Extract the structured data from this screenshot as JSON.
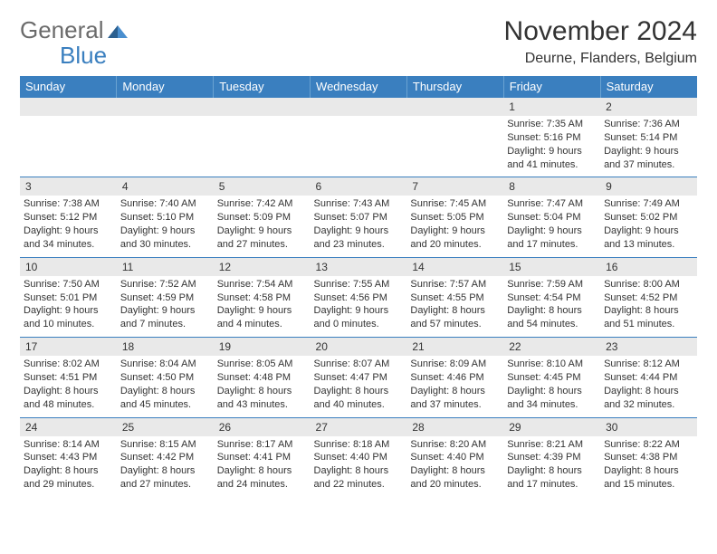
{
  "logo": {
    "general": "General",
    "blue": "Blue"
  },
  "title": "November 2024",
  "location": "Deurne, Flanders, Belgium",
  "colors": {
    "header_bg": "#3a7fbf",
    "header_text": "#ffffff",
    "daynum_bg": "#e9e9e9",
    "text": "#333333",
    "logo_grey": "#6b6b6b",
    "logo_blue": "#3a7fbf",
    "row_divider": "#3a7fbf"
  },
  "typography": {
    "title_fontsize": 30,
    "location_fontsize": 16,
    "weekday_fontsize": 13,
    "daynum_fontsize": 12,
    "body_fontsize": 11,
    "logo_fontsize": 26
  },
  "weekdays": [
    "Sunday",
    "Monday",
    "Tuesday",
    "Wednesday",
    "Thursday",
    "Friday",
    "Saturday"
  ],
  "weeks": [
    [
      null,
      null,
      null,
      null,
      null,
      {
        "n": "1",
        "sr": "Sunrise: 7:35 AM",
        "ss": "Sunset: 5:16 PM",
        "dl1": "Daylight: 9 hours",
        "dl2": "and 41 minutes."
      },
      {
        "n": "2",
        "sr": "Sunrise: 7:36 AM",
        "ss": "Sunset: 5:14 PM",
        "dl1": "Daylight: 9 hours",
        "dl2": "and 37 minutes."
      }
    ],
    [
      {
        "n": "3",
        "sr": "Sunrise: 7:38 AM",
        "ss": "Sunset: 5:12 PM",
        "dl1": "Daylight: 9 hours",
        "dl2": "and 34 minutes."
      },
      {
        "n": "4",
        "sr": "Sunrise: 7:40 AM",
        "ss": "Sunset: 5:10 PM",
        "dl1": "Daylight: 9 hours",
        "dl2": "and 30 minutes."
      },
      {
        "n": "5",
        "sr": "Sunrise: 7:42 AM",
        "ss": "Sunset: 5:09 PM",
        "dl1": "Daylight: 9 hours",
        "dl2": "and 27 minutes."
      },
      {
        "n": "6",
        "sr": "Sunrise: 7:43 AM",
        "ss": "Sunset: 5:07 PM",
        "dl1": "Daylight: 9 hours",
        "dl2": "and 23 minutes."
      },
      {
        "n": "7",
        "sr": "Sunrise: 7:45 AM",
        "ss": "Sunset: 5:05 PM",
        "dl1": "Daylight: 9 hours",
        "dl2": "and 20 minutes."
      },
      {
        "n": "8",
        "sr": "Sunrise: 7:47 AM",
        "ss": "Sunset: 5:04 PM",
        "dl1": "Daylight: 9 hours",
        "dl2": "and 17 minutes."
      },
      {
        "n": "9",
        "sr": "Sunrise: 7:49 AM",
        "ss": "Sunset: 5:02 PM",
        "dl1": "Daylight: 9 hours",
        "dl2": "and 13 minutes."
      }
    ],
    [
      {
        "n": "10",
        "sr": "Sunrise: 7:50 AM",
        "ss": "Sunset: 5:01 PM",
        "dl1": "Daylight: 9 hours",
        "dl2": "and 10 minutes."
      },
      {
        "n": "11",
        "sr": "Sunrise: 7:52 AM",
        "ss": "Sunset: 4:59 PM",
        "dl1": "Daylight: 9 hours",
        "dl2": "and 7 minutes."
      },
      {
        "n": "12",
        "sr": "Sunrise: 7:54 AM",
        "ss": "Sunset: 4:58 PM",
        "dl1": "Daylight: 9 hours",
        "dl2": "and 4 minutes."
      },
      {
        "n": "13",
        "sr": "Sunrise: 7:55 AM",
        "ss": "Sunset: 4:56 PM",
        "dl1": "Daylight: 9 hours",
        "dl2": "and 0 minutes."
      },
      {
        "n": "14",
        "sr": "Sunrise: 7:57 AM",
        "ss": "Sunset: 4:55 PM",
        "dl1": "Daylight: 8 hours",
        "dl2": "and 57 minutes."
      },
      {
        "n": "15",
        "sr": "Sunrise: 7:59 AM",
        "ss": "Sunset: 4:54 PM",
        "dl1": "Daylight: 8 hours",
        "dl2": "and 54 minutes."
      },
      {
        "n": "16",
        "sr": "Sunrise: 8:00 AM",
        "ss": "Sunset: 4:52 PM",
        "dl1": "Daylight: 8 hours",
        "dl2": "and 51 minutes."
      }
    ],
    [
      {
        "n": "17",
        "sr": "Sunrise: 8:02 AM",
        "ss": "Sunset: 4:51 PM",
        "dl1": "Daylight: 8 hours",
        "dl2": "and 48 minutes."
      },
      {
        "n": "18",
        "sr": "Sunrise: 8:04 AM",
        "ss": "Sunset: 4:50 PM",
        "dl1": "Daylight: 8 hours",
        "dl2": "and 45 minutes."
      },
      {
        "n": "19",
        "sr": "Sunrise: 8:05 AM",
        "ss": "Sunset: 4:48 PM",
        "dl1": "Daylight: 8 hours",
        "dl2": "and 43 minutes."
      },
      {
        "n": "20",
        "sr": "Sunrise: 8:07 AM",
        "ss": "Sunset: 4:47 PM",
        "dl1": "Daylight: 8 hours",
        "dl2": "and 40 minutes."
      },
      {
        "n": "21",
        "sr": "Sunrise: 8:09 AM",
        "ss": "Sunset: 4:46 PM",
        "dl1": "Daylight: 8 hours",
        "dl2": "and 37 minutes."
      },
      {
        "n": "22",
        "sr": "Sunrise: 8:10 AM",
        "ss": "Sunset: 4:45 PM",
        "dl1": "Daylight: 8 hours",
        "dl2": "and 34 minutes."
      },
      {
        "n": "23",
        "sr": "Sunrise: 8:12 AM",
        "ss": "Sunset: 4:44 PM",
        "dl1": "Daylight: 8 hours",
        "dl2": "and 32 minutes."
      }
    ],
    [
      {
        "n": "24",
        "sr": "Sunrise: 8:14 AM",
        "ss": "Sunset: 4:43 PM",
        "dl1": "Daylight: 8 hours",
        "dl2": "and 29 minutes."
      },
      {
        "n": "25",
        "sr": "Sunrise: 8:15 AM",
        "ss": "Sunset: 4:42 PM",
        "dl1": "Daylight: 8 hours",
        "dl2": "and 27 minutes."
      },
      {
        "n": "26",
        "sr": "Sunrise: 8:17 AM",
        "ss": "Sunset: 4:41 PM",
        "dl1": "Daylight: 8 hours",
        "dl2": "and 24 minutes."
      },
      {
        "n": "27",
        "sr": "Sunrise: 8:18 AM",
        "ss": "Sunset: 4:40 PM",
        "dl1": "Daylight: 8 hours",
        "dl2": "and 22 minutes."
      },
      {
        "n": "28",
        "sr": "Sunrise: 8:20 AM",
        "ss": "Sunset: 4:40 PM",
        "dl1": "Daylight: 8 hours",
        "dl2": "and 20 minutes."
      },
      {
        "n": "29",
        "sr": "Sunrise: 8:21 AM",
        "ss": "Sunset: 4:39 PM",
        "dl1": "Daylight: 8 hours",
        "dl2": "and 17 minutes."
      },
      {
        "n": "30",
        "sr": "Sunrise: 8:22 AM",
        "ss": "Sunset: 4:38 PM",
        "dl1": "Daylight: 8 hours",
        "dl2": "and 15 minutes."
      }
    ]
  ]
}
